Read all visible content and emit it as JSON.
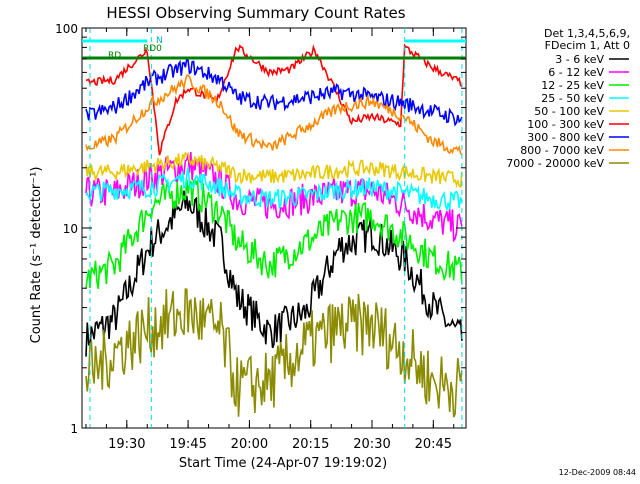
{
  "footer_timestamp": "12-Dec-2009 08:44",
  "chart_data": {
    "type": "line",
    "title": "HESSI Observing Summary Count Rates",
    "xlabel": "Start Time (24-Apr-07 19:19:02)",
    "ylabel": "Count Rate (s⁻¹ detector⁻¹)",
    "y_scale": "log",
    "ylim": [
      1,
      100
    ],
    "xlim": [
      "19:19:02",
      "20:53:00"
    ],
    "x_ticks": [
      "19:30",
      "19:45",
      "20:00",
      "20:15",
      "20:30",
      "20:45"
    ],
    "y_ticks": [
      "1",
      "10",
      "100"
    ],
    "grid": false,
    "legend_position": "right",
    "legend_header": [
      "Det 1,3,4,5,6,9,",
      "FDecim 1, Att 0"
    ],
    "annotations": [
      "N",
      "RD0",
      "RD"
    ],
    "vertical_markers": [
      "19:21:00",
      "19:36:00",
      "20:38:00",
      "20:52:00"
    ],
    "series": [
      {
        "name": "3 - 6 keV",
        "color": "#000000",
        "x": [
          "19:20",
          "19:27",
          "19:36",
          "19:45",
          "19:53",
          "19:57",
          "20:05",
          "20:14",
          "20:22",
          "20:30",
          "20:38",
          "20:45",
          "20:52"
        ],
        "values": [
          2.8,
          3.5,
          8.5,
          13.5,
          8.5,
          4.5,
          3.0,
          3.8,
          8.0,
          9.5,
          7.0,
          4.0,
          2.8
        ]
      },
      {
        "name": "6 - 12 keV",
        "color": "#ff00ff",
        "x": [
          "19:20",
          "19:27",
          "19:36",
          "19:45",
          "19:53",
          "19:57",
          "20:05",
          "20:14",
          "20:22",
          "20:30",
          "20:38",
          "20:45",
          "20:52"
        ],
        "values": [
          15,
          15,
          18,
          21,
          17,
          14,
          13,
          14,
          15,
          15.5,
          13,
          11,
          10
        ]
      },
      {
        "name": "12 - 25 keV",
        "color": "#00ee00",
        "x": [
          "19:20",
          "19:27",
          "19:36",
          "19:45",
          "19:53",
          "19:57",
          "20:05",
          "20:14",
          "20:22",
          "20:30",
          "20:38",
          "20:45",
          "20:52"
        ],
        "values": [
          5.5,
          6.5,
          13,
          16,
          12,
          8.5,
          6.5,
          8.5,
          11,
          11.5,
          9,
          7,
          6
        ]
      },
      {
        "name": "25 - 50 keV",
        "color": "#00ffff",
        "x": [
          "19:20",
          "19:27",
          "19:36",
          "19:45",
          "19:53",
          "19:57",
          "20:05",
          "20:14",
          "20:22",
          "20:30",
          "20:38",
          "20:45",
          "20:52"
        ],
        "values": [
          15,
          15.5,
          16,
          18,
          16,
          14.5,
          14,
          14.5,
          15.5,
          16,
          15,
          14,
          13.5
        ]
      },
      {
        "name": "50 - 100 keV",
        "color": "#e8c800",
        "x": [
          "19:20",
          "19:27",
          "19:36",
          "19:45",
          "19:53",
          "19:57",
          "20:05",
          "20:14",
          "20:22",
          "20:30",
          "20:38",
          "20:45",
          "20:52"
        ],
        "values": [
          19,
          19,
          20.5,
          22,
          20,
          18.5,
          18,
          18.5,
          19.5,
          20,
          19,
          18,
          17.5
        ]
      },
      {
        "name": "100 - 300 keV",
        "color": "#ff0000",
        "x": [
          "19:20",
          "19:27",
          "19:35",
          "19:38",
          "19:42",
          "19:45",
          "19:52",
          "19:57",
          "20:05",
          "20:10",
          "20:16",
          "20:25",
          "20:30",
          "20:37",
          "20:38",
          "20:45",
          "20:52"
        ],
        "values": [
          53,
          55,
          78,
          24,
          43,
          50,
          43,
          80,
          60,
          62,
          78,
          34,
          36,
          33,
          80,
          63,
          53
        ]
      },
      {
        "name": "300 - 800 keV",
        "color": "#0000ff",
        "x": [
          "19:20",
          "19:27",
          "19:36",
          "19:45",
          "19:53",
          "19:57",
          "20:05",
          "20:14",
          "20:22",
          "20:30",
          "20:38",
          "20:45",
          "20:52"
        ],
        "values": [
          36,
          40,
          55,
          65,
          55,
          45,
          42,
          45,
          48,
          45,
          42,
          38,
          35
        ]
      },
      {
        "name": "800 - 7000 keV",
        "color": "#ff8800",
        "x": [
          "19:20",
          "19:27",
          "19:36",
          "19:45",
          "19:53",
          "19:57",
          "20:05",
          "20:14",
          "20:22",
          "20:30",
          "20:38",
          "20:45",
          "20:52"
        ],
        "values": [
          25,
          28,
          42,
          55,
          42,
          30,
          25,
          32,
          40,
          43,
          36,
          27,
          24
        ]
      },
      {
        "name": "7000 - 20000 keV",
        "color": "#8b8b00",
        "x": [
          "19:20",
          "19:27",
          "19:36",
          "19:45",
          "19:53",
          "19:57",
          "20:05",
          "20:14",
          "20:22",
          "20:30",
          "20:38",
          "20:45",
          "20:52"
        ],
        "values": [
          1.8,
          2.4,
          3.2,
          3.8,
          3.0,
          1.6,
          1.7,
          2.6,
          3.2,
          3.3,
          2.4,
          1.7,
          1.6
        ]
      }
    ],
    "flags": [
      {
        "name": "N",
        "color": "#00ffff",
        "start": "19:19:02",
        "end": "19:35:00"
      },
      {
        "name": "N",
        "color": "#00ffff",
        "start": "20:38:00",
        "end": "20:53:00"
      },
      {
        "name": "RD0",
        "color": "#008000",
        "start": "19:19:02",
        "end": "20:53:00"
      }
    ]
  }
}
